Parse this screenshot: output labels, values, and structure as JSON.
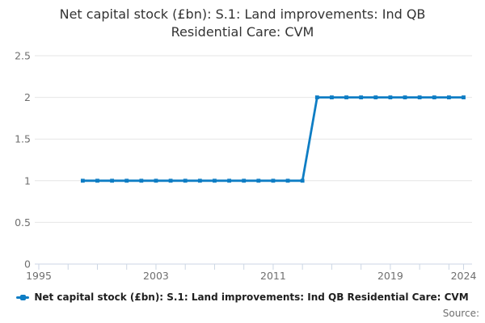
{
  "title": "Net capital stock (£bn): S.1: Land improvements: Ind QB\nResidential Care: CVM",
  "legend": {
    "label": "Net capital stock (£bn): S.1: Land improvements: Ind QB Residential Care: CVM"
  },
  "source_label": "Source:",
  "colors": {
    "line": "#0e7dc4",
    "grid": "#e6e6e6",
    "axis": "#ccd6e4",
    "tick_label": "#6f6f6f",
    "title_text": "#333333",
    "legend_text": "#1f1f1f"
  },
  "chart_data": {
    "type": "line",
    "title": "Net capital stock (£bn): S.1: Land improvements: Ind QB Residential Care: CVM",
    "x": [
      1998,
      1999,
      2000,
      2001,
      2002,
      2003,
      2004,
      2005,
      2006,
      2007,
      2008,
      2009,
      2010,
      2011,
      2012,
      2013,
      2014,
      2015,
      2016,
      2017,
      2018,
      2019,
      2020,
      2021,
      2022,
      2023,
      2024
    ],
    "series": [
      {
        "name": "Net capital stock (£bn): S.1: Land improvements: Ind QB Residential Care: CVM",
        "values": [
          1,
          1,
          1,
          1,
          1,
          1,
          1,
          1,
          1,
          1,
          1,
          1,
          1,
          1,
          1,
          1,
          2,
          2,
          2,
          2,
          2,
          2,
          2,
          2,
          2,
          2,
          2
        ]
      }
    ],
    "xlabel": "",
    "ylabel": "",
    "xlim": [
      1995,
      2024
    ],
    "ylim": [
      0,
      2.5
    ],
    "y_ticks": [
      0,
      0.5,
      1,
      1.5,
      2,
      2.5
    ],
    "y_tick_labels": [
      "0",
      "0.5",
      "1",
      "1.5",
      "2",
      "2.5"
    ],
    "x_tick_labels": [
      1995,
      2003,
      2011,
      2019,
      2024
    ],
    "x_minor_tick_step": 2,
    "grid": "horizontal",
    "marker": "square",
    "legend_position": "bottom"
  }
}
